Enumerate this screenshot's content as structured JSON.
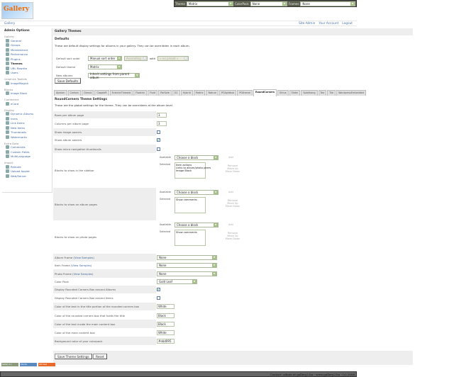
{
  "header": {
    "logo_text": "Gallery",
    "theme_label": "Theme",
    "theme_value": "Matrix",
    "colorpack_label": "ColorPack",
    "colorpack_value": "None",
    "frames_label": "Frames",
    "frames_value": "None"
  },
  "breadcrumb": {
    "gallery": "Gallery",
    "site_admin": "Site Admin",
    "your_account": "Your Account",
    "logout": "Logout"
  },
  "sidebar": {
    "title": "Admin Options",
    "groups": [
      {
        "label": "Gallery",
        "items": [
          "General",
          "Groups",
          "Maintenance",
          "Performance",
          "Plugins",
          "Themes",
          "URL Rewrite",
          "Users"
        ]
      },
      {
        "label": "Graphics Toolkits",
        "items": [
          "ImageMagick"
        ]
      },
      {
        "label": "Blocks",
        "items": [
          "Image Block"
        ]
      },
      {
        "label": "Commerce",
        "items": [
          "eCard"
        ]
      },
      {
        "label": "Display",
        "items": [
          "Dynamic Albums",
          "Icons",
          "Link Items",
          "New Items",
          "Thumbnails",
          "Watermarks"
        ]
      },
      {
        "label": "Extra Data",
        "items": [
          "Comments",
          "Custom Fields",
          "MultiLanguage"
        ]
      },
      {
        "label": "Import",
        "items": [
          "Remote",
          "Upload Applet",
          "Web/Server"
        ]
      }
    ],
    "current": "Themes"
  },
  "main": {
    "title": "Gallery Themes",
    "defaults": {
      "heading": "Defaults",
      "desc": "These are default display settings for albums in your gallery. They can be overridden in each album.",
      "sort_label": "Default sort order",
      "sort_value": "Manual sort order",
      "direction_value": "Ascending",
      "with_label": "with",
      "preset_value": "« no preset »",
      "theme_label": "Default theme",
      "theme_value": "Matrix",
      "new_albums_label": "New albums",
      "new_albums_value": "Inherit settings from parent album",
      "save": "Save Defaults"
    },
    "tabs": [
      "Ajaxian",
      "Carbon",
      "Classic",
      "CappleR",
      "EclecticThreads",
      "Floatrix",
      "Fluid",
      "PorSale",
      "G1",
      "Hybrid",
      "Matrix",
      "Nature",
      "PGlightbox",
      "PGtheme",
      "RoundCorners",
      "Siriux",
      "Slider",
      "Splathang",
      "Tea",
      "Tile",
      "WordpressEmbedded"
    ],
    "active_tab": "RoundCorners",
    "theme_settings": {
      "heading": "RoundCorners Theme Settings",
      "desc": "These are the global settings for the theme. They can be overridden at the album level.",
      "rows_label": "Rows per album page",
      "rows_value": "3",
      "cols_label": "Columns per album page",
      "cols_value": "3",
      "image_owners_label": "Show image owners",
      "image_owners": false,
      "album_owners_label": "Show album owners",
      "album_owners": true,
      "micro_label": "Show micro navigation thumbnails",
      "micro": false,
      "available_label": "Available",
      "selected_label": "Selected",
      "choose": "Choose a block",
      "add": "Add",
      "remove": "Remove",
      "move_up": "Move Up",
      "move_down": "Move Down",
      "sidebar_blocks_label": "Blocks to show in the sidebar",
      "sidebar_blocks": "Item actions\nLinks to album/photo peers\nImage Block",
      "album_blocks_label": "Blocks to show on album pages",
      "album_blocks": "Show comments",
      "photo_blocks_label": "Blocks to show on photo pages",
      "photo_blocks": "Show comments",
      "album_frame_label": "Album Frame",
      "item_frame_label": "Item Frame",
      "photo_frame_label": "Photo Frame",
      "view_samples": "View Samples",
      "album_frame": "None",
      "item_frame": "None",
      "photo_frame": "None",
      "colorpack_label": "Color Pack",
      "colorpack": "Gold Leaf",
      "rc_albums_label": "Display Rounded Corners Box around Albums",
      "rc_albums": true,
      "rc_items_label": "Display Rounded Corners Box around Items",
      "rc_items": false,
      "c1_label": "Color of the text in the title portion of the rounded corners box",
      "c1": "White",
      "c2_label": "Color of the rounded corners box that holds the title",
      "c2": "Black",
      "c3_label": "Color of the text inside the main content box",
      "c3": "Black",
      "c4_label": "Color of the main content box",
      "c4": "White",
      "c5_label": "Background color of your colorpack",
      "c5": "#ebd095",
      "save": "Save Theme Settings",
      "reset": "Reset"
    }
  },
  "badges": [
    "Gallery 2.x",
    "Ubuntu",
    "RSS feed"
  ],
  "footer": "Contact: admin at gallery2.hu - www.gallery2.hu - (c) 2006"
}
